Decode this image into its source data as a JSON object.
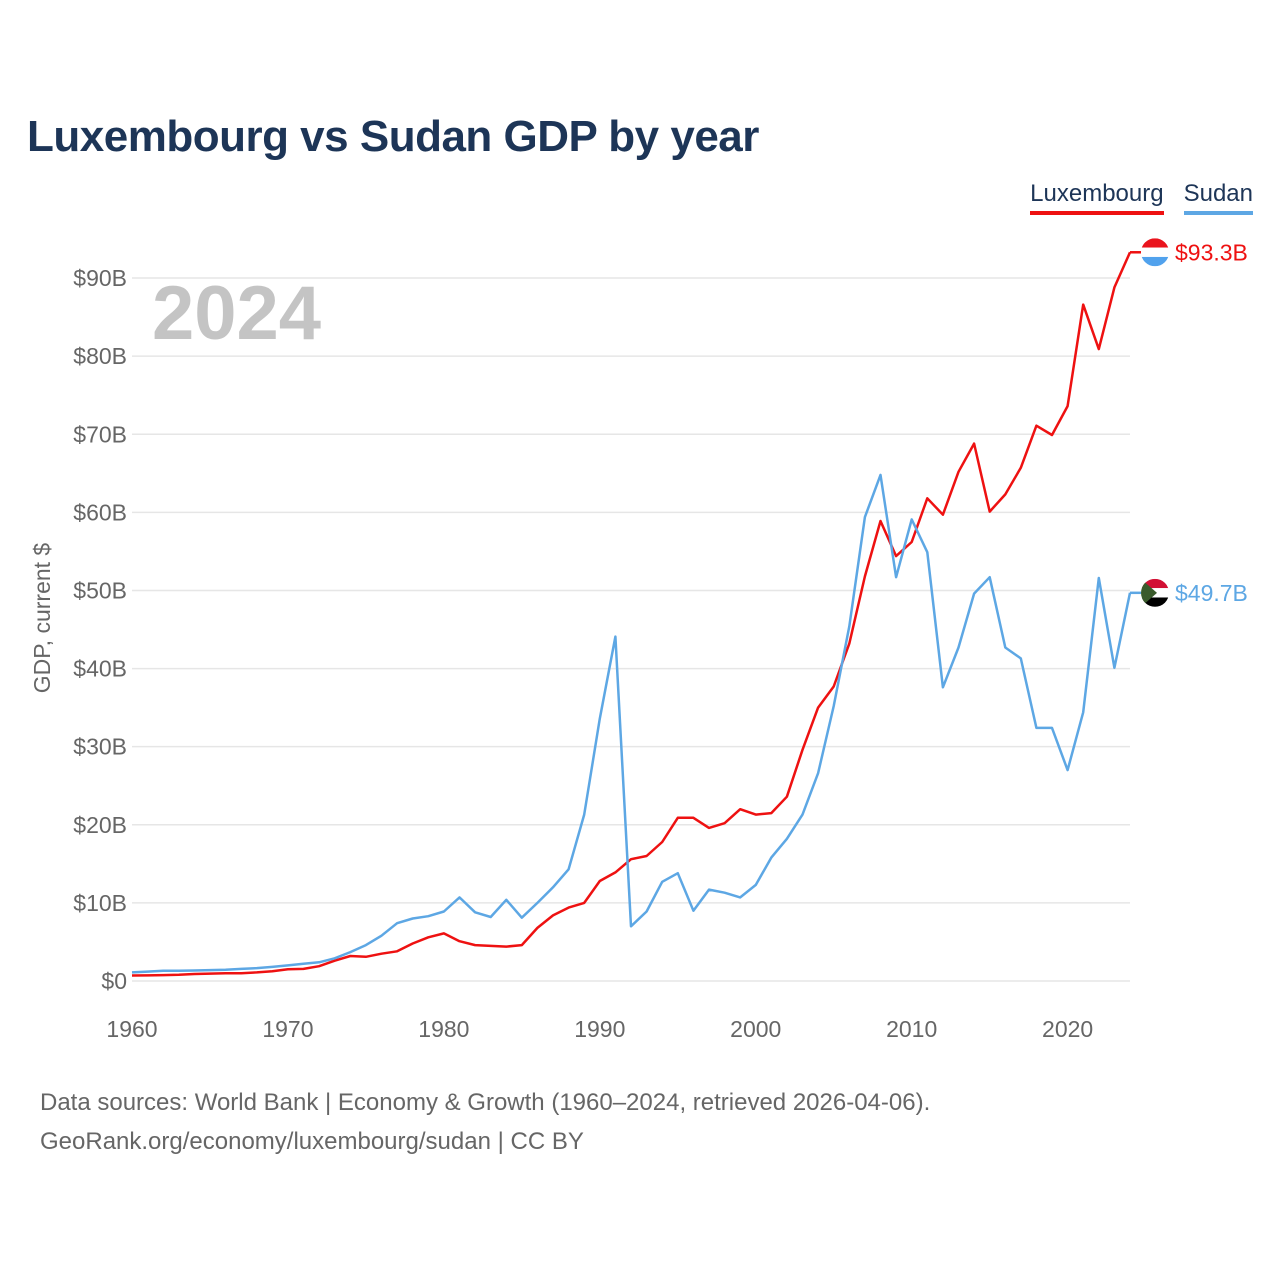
{
  "chart_data": {
    "type": "line",
    "title": "Luxembourg vs Sudan GDP by year",
    "xlabel": "",
    "ylabel": "GDP, current $",
    "xlim": [
      1960,
      2024
    ],
    "ylim": [
      0,
      95
    ],
    "y_ticks": [
      0,
      10,
      20,
      30,
      40,
      50,
      60,
      70,
      80,
      90
    ],
    "y_tick_labels": [
      "$0",
      "$10B",
      "$20B",
      "$30B",
      "$40B",
      "$50B",
      "$60B",
      "$70B",
      "$80B",
      "$90B"
    ],
    "x_ticks": [
      1960,
      1970,
      1980,
      1990,
      2000,
      2010,
      2020
    ],
    "x_tick_labels": [
      "1960",
      "1970",
      "1980",
      "1990",
      "2000",
      "2010",
      "2020"
    ],
    "year_label": "2024",
    "grid": true,
    "legend_position": "top-right",
    "x": [
      1960,
      1961,
      1962,
      1963,
      1964,
      1965,
      1966,
      1967,
      1968,
      1969,
      1970,
      1971,
      1972,
      1973,
      1974,
      1975,
      1976,
      1977,
      1978,
      1979,
      1980,
      1981,
      1982,
      1983,
      1984,
      1985,
      1986,
      1987,
      1988,
      1989,
      1990,
      1991,
      1992,
      1993,
      1994,
      1995,
      1996,
      1997,
      1998,
      1999,
      2000,
      2001,
      2002,
      2003,
      2004,
      2005,
      2006,
      2007,
      2008,
      2009,
      2010,
      2011,
      2012,
      2013,
      2014,
      2015,
      2016,
      2017,
      2018,
      2019,
      2020,
      2021,
      2022,
      2023,
      2024
    ],
    "series": [
      {
        "name": "Luxembourg",
        "color": "#ee1111",
        "end_label": "$93.3B",
        "values": [
          0.7,
          0.72,
          0.76,
          0.8,
          0.9,
          0.95,
          0.98,
          1.0,
          1.1,
          1.25,
          1.5,
          1.55,
          1.9,
          2.6,
          3.2,
          3.1,
          3.5,
          3.8,
          4.8,
          5.6,
          6.1,
          5.1,
          4.6,
          4.5,
          4.4,
          4.6,
          6.8,
          8.4,
          9.4,
          10.0,
          12.8,
          13.9,
          15.6,
          16.0,
          17.8,
          20.9,
          20.9,
          19.6,
          20.2,
          22.0,
          21.3,
          21.5,
          23.6,
          29.6,
          35.0,
          37.7,
          43.2,
          51.8,
          58.9,
          54.4,
          56.2,
          61.8,
          59.7,
          65.2,
          68.8,
          60.1,
          62.3,
          65.7,
          71.1,
          69.9,
          73.6,
          86.6,
          80.9,
          88.8,
          93.3
        ]
      },
      {
        "name": "Sudan",
        "color": "#5da7e4",
        "end_label": "$49.7B",
        "values": [
          1.1,
          1.2,
          1.3,
          1.3,
          1.35,
          1.4,
          1.45,
          1.55,
          1.65,
          1.8,
          2.0,
          2.2,
          2.4,
          2.9,
          3.7,
          4.6,
          5.8,
          7.4,
          8.0,
          8.3,
          8.9,
          10.7,
          8.8,
          8.2,
          10.4,
          8.1,
          10.0,
          12.0,
          14.3,
          21.3,
          33.6,
          44.1,
          7.0,
          8.9,
          12.7,
          13.8,
          9.0,
          11.7,
          11.3,
          10.7,
          12.3,
          15.8,
          18.2,
          21.3,
          26.6,
          35.2,
          45.4,
          59.4,
          64.8,
          51.7,
          59.1,
          54.9,
          37.6,
          42.7,
          49.6,
          51.7,
          42.7,
          41.3,
          32.4,
          32.4,
          27.0,
          34.4,
          51.6,
          40.1,
          49.7
        ]
      }
    ]
  },
  "legend": {
    "items": [
      "Luxembourg",
      "Sudan"
    ]
  },
  "footer": {
    "line1": "Data sources: World Bank | Economy & Growth (1960–2024, retrieved 2026-04-06).",
    "line2": "GeoRank.org/economy/luxembourg/sudan | CC BY"
  }
}
